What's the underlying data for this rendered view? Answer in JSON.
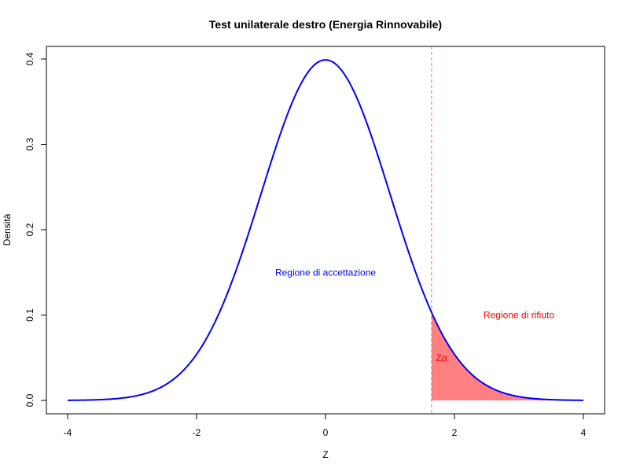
{
  "chart_data": {
    "type": "line",
    "title": "Test unilaterale destro (Energia Rinnovabile)",
    "xlabel": "Z",
    "ylabel": "Densità",
    "xlim": [
      -4,
      4
    ],
    "ylim": [
      0,
      0.4
    ],
    "x_ticks": [
      "-4",
      "-2",
      "0",
      "2",
      "4"
    ],
    "y_ticks": [
      "0.0",
      "0.1",
      "0.2",
      "0.3",
      "0.4"
    ],
    "grid": false,
    "series": [
      {
        "distribution": "standard normal density",
        "x": [
          -4,
          -3.5,
          -3,
          -2.5,
          -2,
          -1.5,
          -1,
          -0.5,
          0,
          0.5,
          1,
          1.5,
          2,
          2.5,
          3,
          3.5,
          4
        ],
        "y": [
          0.0001,
          0.0009,
          0.0044,
          0.0175,
          0.054,
          0.1295,
          0.242,
          0.3521,
          0.3989,
          0.3521,
          0.242,
          0.1295,
          0.054,
          0.0175,
          0.0044,
          0.0009,
          0.0001
        ],
        "color": "#0000ff"
      }
    ],
    "critical_value": 1.645,
    "rejection_region": {
      "from": 1.645,
      "to": 4,
      "fill": "#ff8080"
    },
    "critical_line_color": "#ff6060",
    "annotations": [
      {
        "text": "Regione di accettazione",
        "x": 0,
        "y": 0.15,
        "color": "#0000ff"
      },
      {
        "text": "Regione di rifiuto",
        "x": 3,
        "y": 0.1,
        "color": "#ff0000"
      },
      {
        "text": "Zα",
        "x": 1.8,
        "y": 0.05,
        "color": "#ff0000"
      }
    ]
  }
}
